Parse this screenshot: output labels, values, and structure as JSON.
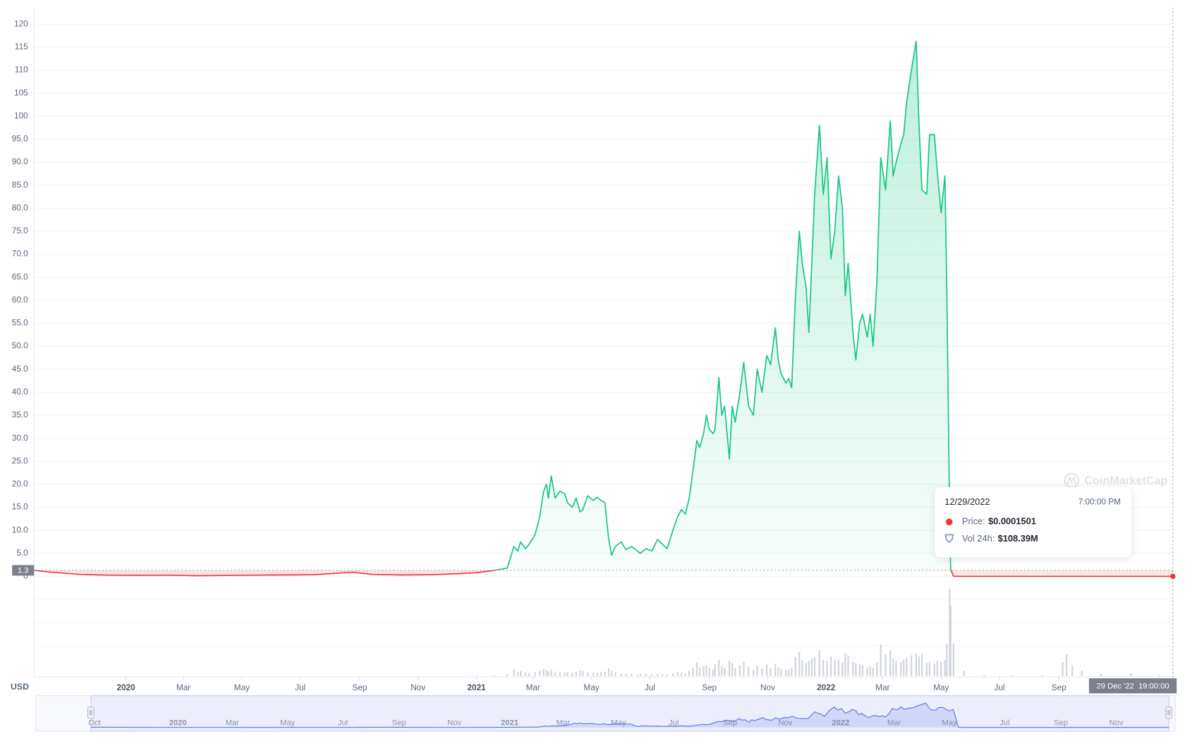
{
  "chart_data": {
    "type": "line",
    "currency": "USD",
    "watermark": "CoinMarketCap",
    "reference_value": 1.3,
    "color_up": "#16c784",
    "color_down": "#ea3943",
    "volume_color": "#cfd3dc",
    "navigator_color": "#5a6ee8",
    "grid": true,
    "xlim": [
      "2019-09-27",
      "2022-12-29"
    ],
    "ylim": [
      0,
      120
    ],
    "yticks": [
      0,
      {
        "value": 5,
        "label": "5.0"
      },
      {
        "value": 10,
        "label": "10.0"
      },
      {
        "value": 15,
        "label": "15.0"
      },
      {
        "value": 20,
        "label": "20.0"
      },
      {
        "value": 25,
        "label": "25.0"
      },
      {
        "value": 30,
        "label": "30.0"
      },
      {
        "value": 35,
        "label": "35.0"
      },
      {
        "value": 40,
        "label": "40.0"
      },
      {
        "value": 45,
        "label": "45.0"
      },
      {
        "value": 50,
        "label": "50.0"
      },
      {
        "value": 55,
        "label": "55.0"
      },
      {
        "value": 60,
        "label": "60.0"
      },
      {
        "value": 65,
        "label": "65.0"
      },
      {
        "value": 70,
        "label": "70.0"
      },
      {
        "value": 75,
        "label": "75.0"
      },
      {
        "value": 80,
        "label": "80.0"
      },
      {
        "value": 85,
        "label": "85.0"
      },
      {
        "value": 90,
        "label": "90.0"
      },
      {
        "value": 95,
        "label": "95.0"
      },
      100,
      105,
      110,
      115,
      120
    ],
    "xticks": [
      {
        "value": "2020-01",
        "label": "2020"
      },
      {
        "value": "2020-03",
        "label": "Mar"
      },
      {
        "value": "2020-05",
        "label": "May"
      },
      {
        "value": "2020-07",
        "label": "Jul"
      },
      {
        "value": "2020-09",
        "label": "Sep"
      },
      {
        "value": "2020-11",
        "label": "Nov"
      },
      {
        "value": "2021-01",
        "label": "2021"
      },
      {
        "value": "2021-03",
        "label": "Mar"
      },
      {
        "value": "2021-05",
        "label": "May"
      },
      {
        "value": "2021-07",
        "label": "Jul"
      },
      {
        "value": "2021-09",
        "label": "Sep"
      },
      {
        "value": "2021-11",
        "label": "Nov"
      },
      {
        "value": "2022-01",
        "label": "2022"
      },
      {
        "value": "2022-03",
        "label": "Mar"
      },
      {
        "value": "2022-05",
        "label": "May"
      },
      {
        "value": "2022-07",
        "label": "Jul"
      },
      {
        "value": "2022-09",
        "label": "Sep"
      }
    ],
    "navigator_xlim": [
      "2019-07-28",
      "2023-01-05"
    ],
    "navigator_xticks": [
      {
        "value": "2019-10",
        "label": "Oct"
      },
      {
        "value": "2020-01",
        "label": "2020"
      },
      {
        "value": "2020-03",
        "label": "Mar"
      },
      {
        "value": "2020-05",
        "label": "May"
      },
      {
        "value": "2020-07",
        "label": "Jul"
      },
      {
        "value": "2020-09",
        "label": "Sep"
      },
      {
        "value": "2020-11",
        "label": "Nov"
      },
      {
        "value": "2021-01",
        "label": "2021"
      },
      {
        "value": "2021-03",
        "label": "Mar"
      },
      {
        "value": "2021-05",
        "label": "May"
      },
      {
        "value": "2021-07",
        "label": "Jul"
      },
      {
        "value": "2021-09",
        "label": "Sep"
      },
      {
        "value": "2021-11",
        "label": "Nov"
      },
      {
        "value": "2022-01",
        "label": "2022"
      },
      {
        "value": "2022-03",
        "label": "Mar"
      },
      {
        "value": "2022-05",
        "label": "May"
      },
      {
        "value": "2022-07",
        "label": "Jul"
      },
      {
        "value": "2022-09",
        "label": "Sep"
      },
      {
        "value": "2022-11",
        "label": "Nov"
      }
    ],
    "x": [
      "2019-09-27",
      "2019-10-15",
      "2019-11-15",
      "2019-12-15",
      "2020-01-15",
      "2020-02-15",
      "2020-03-15",
      "2020-04-15",
      "2020-05-15",
      "2020-06-15",
      "2020-07-15",
      "2020-08-25",
      "2020-09-15",
      "2020-10-15",
      "2020-11-15",
      "2020-12-15",
      "2021-01-01",
      "2021-01-20",
      "2021-02-02",
      "2021-02-09",
      "2021-02-13",
      "2021-02-16",
      "2021-02-21",
      "2021-02-25",
      "2021-03-03",
      "2021-03-08",
      "2021-03-12",
      "2021-03-15",
      "2021-03-17",
      "2021-03-20",
      "2021-03-24",
      "2021-03-29",
      "2021-04-03",
      "2021-04-06",
      "2021-04-11",
      "2021-04-15",
      "2021-04-19",
      "2021-04-22",
      "2021-04-27",
      "2021-05-03",
      "2021-05-07",
      "2021-05-11",
      "2021-05-15",
      "2021-05-19",
      "2021-05-22",
      "2021-05-26",
      "2021-06-01",
      "2021-06-06",
      "2021-06-12",
      "2021-06-18",
      "2021-06-21",
      "2021-06-27",
      "2021-07-03",
      "2021-07-09",
      "2021-07-14",
      "2021-07-19",
      "2021-07-25",
      "2021-07-30",
      "2021-08-03",
      "2021-08-07",
      "2021-08-11",
      "2021-08-15",
      "2021-08-19",
      "2021-08-22",
      "2021-08-26",
      "2021-08-29",
      "2021-09-01",
      "2021-09-05",
      "2021-09-07",
      "2021-09-11",
      "2021-09-14",
      "2021-09-17",
      "2021-09-22",
      "2021-09-25",
      "2021-09-28",
      "2021-10-03",
      "2021-10-07",
      "2021-10-12",
      "2021-10-17",
      "2021-10-21",
      "2021-10-26",
      "2021-10-31",
      "2021-11-04",
      "2021-11-09",
      "2021-11-12",
      "2021-11-15",
      "2021-11-20",
      "2021-11-23",
      "2021-11-26",
      "2021-11-30",
      "2021-12-04",
      "2021-12-07",
      "2021-12-11",
      "2021-12-14",
      "2021-12-17",
      "2021-12-20",
      "2021-12-25",
      "2021-12-29",
      "2022-01-02",
      "2022-01-06",
      "2022-01-10",
      "2022-01-14",
      "2022-01-18",
      "2022-01-21",
      "2022-01-24",
      "2022-01-29",
      "2022-02-01",
      "2022-02-05",
      "2022-02-08",
      "2022-02-13",
      "2022-02-16",
      "2022-02-19",
      "2022-02-23",
      "2022-02-27",
      "2022-03-04",
      "2022-03-09",
      "2022-03-12",
      "2022-03-15",
      "2022-03-20",
      "2022-03-23",
      "2022-03-26",
      "2022-03-31",
      "2022-04-05",
      "2022-04-08",
      "2022-04-11",
      "2022-04-16",
      "2022-04-19",
      "2022-04-24",
      "2022-04-27",
      "2022-05-01",
      "2022-05-05",
      "2022-05-07",
      "2022-05-10",
      "2022-05-11",
      "2022-05-14",
      "2022-05-25",
      "2022-06-15",
      "2022-07-15",
      "2022-08-15",
      "2022-09-05",
      "2022-09-09",
      "2022-09-15",
      "2022-09-25",
      "2022-10-15",
      "2022-11-15",
      "2022-12-15",
      "2022-12-29"
    ],
    "values": [
      1.3,
      0.9,
      0.4,
      0.25,
      0.22,
      0.25,
      0.15,
      0.2,
      0.25,
      0.3,
      0.35,
      0.9,
      0.4,
      0.3,
      0.35,
      0.6,
      0.8,
      1.3,
      1.8,
      6.5,
      5.5,
      7.5,
      6,
      7,
      9,
      13,
      18.5,
      20,
      17,
      21.8,
      17,
      18.5,
      18,
      16,
      15,
      17,
      14,
      14.5,
      17.5,
      16.5,
      17.2,
      16.5,
      16,
      8,
      4.6,
      6.5,
      7.5,
      5.8,
      6.5,
      5.5,
      5,
      6,
      5.5,
      8,
      7,
      6,
      10,
      13,
      14.5,
      13.5,
      17,
      23,
      29.5,
      28,
      31,
      35,
      32,
      31,
      32,
      43.2,
      35,
      37,
      25.5,
      37,
      33.5,
      40,
      46.5,
      37,
      35,
      45,
      40,
      48,
      46,
      54,
      47,
      44,
      42,
      43,
      41,
      61,
      75,
      68,
      63,
      53,
      68,
      83,
      98,
      83,
      91,
      69,
      75,
      87,
      80,
      61,
      68,
      53,
      47,
      55,
      57,
      52,
      57,
      50,
      64,
      91,
      84,
      99,
      87,
      90,
      94,
      96,
      103,
      110,
      116.3,
      98,
      84,
      83,
      96,
      96,
      88,
      79,
      87,
      62,
      12,
      1.5,
      0.0002,
      0.0001,
      0.0001,
      0.0001,
      0.0001,
      0.0002,
      0.0005,
      0.0003,
      0.0002,
      0.0002,
      0.0002,
      0.0001,
      0.0001501
    ],
    "volume": [
      10000000,
      10000000,
      10000000,
      10000000,
      10000000,
      10000000,
      10000000,
      10000000,
      10000000,
      10000000,
      20000000,
      30000000,
      20000000,
      10000000,
      20000000,
      30000000,
      50000000,
      100000000,
      300000000,
      1200000000,
      800000000,
      900000000,
      700000000,
      600000000,
      800000000,
      1000000000,
      1300000000,
      1100000000,
      900000000,
      1200000000,
      800000000,
      700000000,
      600000000,
      700000000,
      600000000,
      800000000,
      1000000000,
      900000000,
      700000000,
      600000000,
      600000000,
      700000000,
      800000000,
      1400000000,
      1000000000,
      700000000,
      500000000,
      400000000,
      400000000,
      300000000,
      400000000,
      300000000,
      300000000,
      400000000,
      300000000,
      300000000,
      500000000,
      700000000,
      600000000,
      500000000,
      900000000,
      1500000000,
      2500000000,
      1600000000,
      1800000000,
      2000000000,
      1500000000,
      1200000000,
      2200000000,
      3000000000,
      1800000000,
      1500000000,
      2800000000,
      2400000000,
      1500000000,
      2000000000,
      2600000000,
      1700000000,
      1200000000,
      1900000000,
      1300000000,
      2100000000,
      1500000000,
      2300000000,
      1600000000,
      1300000000,
      1100000000,
      1200000000,
      1500000000,
      3500000000,
      4500000000,
      3000000000,
      2400000000,
      2800000000,
      3200000000,
      3500000000,
      4800000000,
      3000000000,
      2800000000,
      3600000000,
      2900000000,
      3000000000,
      2500000000,
      4200000000,
      3800000000,
      2600000000,
      2400000000,
      2200000000,
      2000000000,
      1600000000,
      1800000000,
      1500000000,
      2500000000,
      5800000000,
      4000000000,
      4800000000,
      3200000000,
      2800000000,
      2600000000,
      3000000000,
      3400000000,
      3800000000,
      4200000000,
      3600000000,
      4000000000,
      2400000000,
      2600000000,
      2200000000,
      2800000000,
      2600000000,
      3000000000,
      6000000000,
      16000000000,
      13000000000,
      6000000000,
      1000000000,
      200000000,
      150000000,
      150000000,
      2500000000,
      4000000000,
      2000000000,
      1000000000,
      400000000,
      500000000,
      200000000,
      108390000
    ],
    "crosshair_label": "29 Dec '22  19:00:00",
    "tooltip": {
      "date": "12/29/2022",
      "time": "7:00:00 PM",
      "price_label": "Price:",
      "price": "$0.0001501",
      "volume_label": "Vol 24h:",
      "volume": "$108.39M"
    }
  }
}
